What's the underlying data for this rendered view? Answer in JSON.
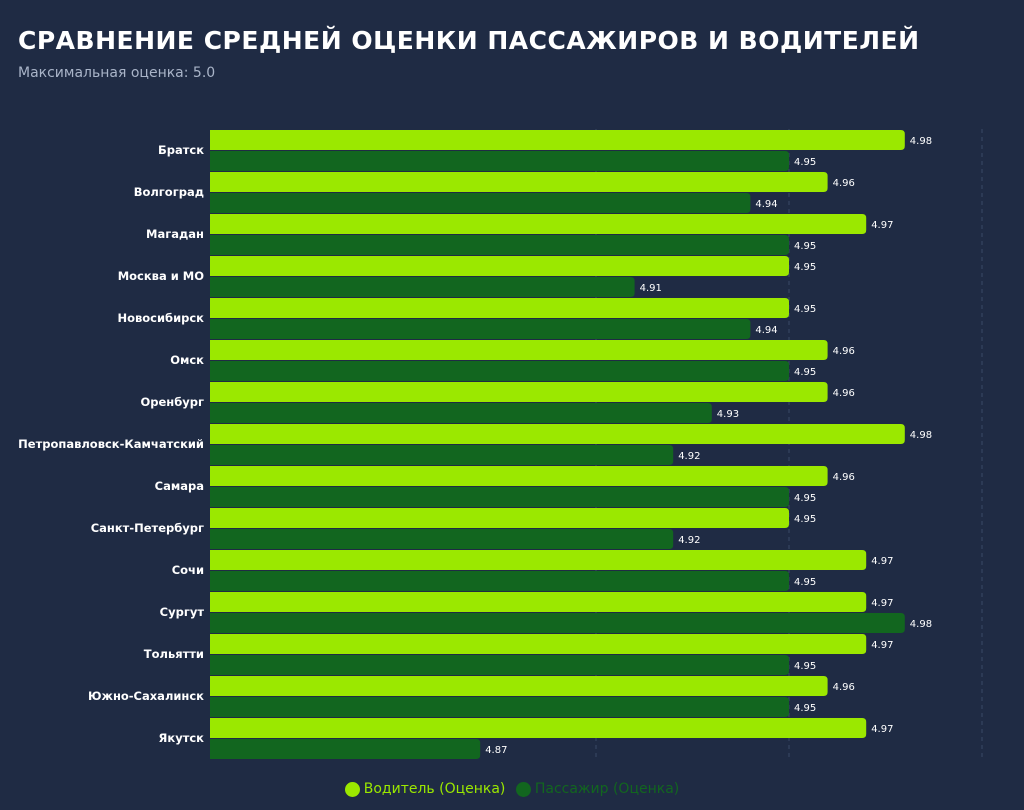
{
  "title": "СРАВНЕНИЕ СРЕДНЕЙ ОЦЕНКИ ПАССАЖИРОВ И ВОДИТЕЛЕЙ",
  "subtitle": "Максимальная оценка: 5.0",
  "colors": {
    "background": "#1f2b44",
    "driver": "#9be800",
    "passenger": "#12661f"
  },
  "chart_data": {
    "type": "bar",
    "orientation": "horizontal",
    "categories": [
      "Братск",
      "Волгоград",
      "Магадан",
      "Москва и МО",
      "Новосибирск",
      "Омск",
      "Оренбург",
      "Петропавловск-Камчатский",
      "Самара",
      "Санкт-Петербург",
      "Сочи",
      "Сургут",
      "Тольятти",
      "Южно-Сахалинск",
      "Якутск"
    ],
    "series": [
      {
        "name": "Водитель (Оценка)",
        "color": "#9be800",
        "values": [
          4.98,
          4.96,
          4.97,
          4.95,
          4.95,
          4.96,
          4.96,
          4.98,
          4.96,
          4.95,
          4.97,
          4.97,
          4.97,
          4.96,
          4.97
        ]
      },
      {
        "name": "Пассажир (Оценка)",
        "color": "#12661f",
        "values": [
          4.95,
          4.94,
          4.95,
          4.91,
          4.94,
          4.95,
          4.93,
          4.92,
          4.95,
          4.92,
          4.95,
          4.98,
          4.95,
          4.95,
          4.87
        ]
      }
    ],
    "xlim": [
      4.8,
      5.0
    ],
    "gridlines_at": [
      4.9,
      4.95,
      5.0
    ],
    "grid": true,
    "data_labels": true,
    "legend": "bottom"
  }
}
